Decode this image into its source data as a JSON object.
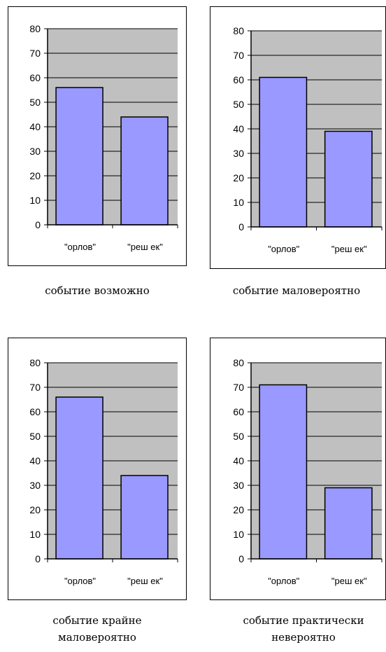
{
  "chart_data": [
    {
      "type": "bar",
      "categories": [
        "\"орлов\"",
        "\"реш ек\""
      ],
      "values": [
        56,
        44
      ],
      "ylim": [
        0,
        80
      ],
      "yticks": [
        "0",
        "10",
        "20",
        "30",
        "40",
        "50",
        "60",
        "70",
        "80"
      ],
      "grid": true,
      "caption": "событие возможно"
    },
    {
      "type": "bar",
      "categories": [
        "\"орлов\"",
        "\"реш ек\""
      ],
      "values": [
        61,
        39
      ],
      "ylim": [
        0,
        80
      ],
      "yticks": [
        "0",
        "10",
        "20",
        "30",
        "40",
        "50",
        "60",
        "70",
        "80"
      ],
      "grid": true,
      "caption": "событие маловероятно"
    },
    {
      "type": "bar",
      "categories": [
        "\"орлов\"",
        "\"реш ек\""
      ],
      "values": [
        66,
        34
      ],
      "ylim": [
        0,
        80
      ],
      "yticks": [
        "0",
        "10",
        "20",
        "30",
        "40",
        "50",
        "60",
        "70",
        "80"
      ],
      "grid": true,
      "caption": "событие крайне маловероятно"
    },
    {
      "type": "bar",
      "categories": [
        "\"орлов\"",
        "\"реш ек\""
      ],
      "values": [
        71,
        29
      ],
      "ylim": [
        0,
        80
      ],
      "yticks": [
        "0",
        "10",
        "20",
        "30",
        "40",
        "50",
        "60",
        "70",
        "80"
      ],
      "grid": true,
      "caption": "событие практически невероятно"
    }
  ],
  "colors": {
    "bar_fill": "#9999ff",
    "plot_background": "#c0c0c0",
    "gridline": "#000000",
    "axis": "#000000"
  }
}
